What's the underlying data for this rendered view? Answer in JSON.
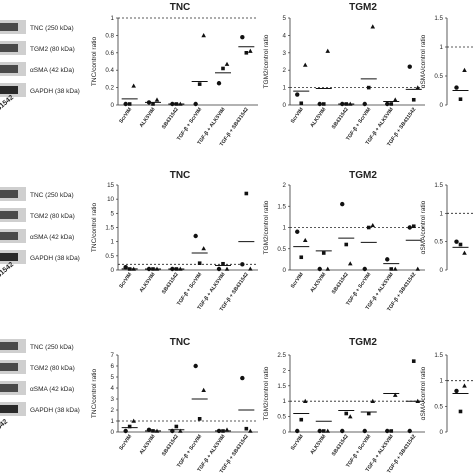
{
  "blots": [
    {
      "labels": [
        "TNC (250 kDa)",
        "TGM2 (80 kDa)",
        "αSMA (42 kDa)",
        "GAPDH (38 kDa)"
      ],
      "lane_label": "31542"
    },
    {
      "labels": [
        "TNC (250 kDa)",
        "TGM2 (80 kDa)",
        "αSMA (42 kDa)",
        "GAPDH (38 kDa)"
      ],
      "lane_label": "31542"
    },
    {
      "labels": [
        "TNC (250 kDa)",
        "TGM2 (80 kDa)",
        "αSMA (42 kDa)",
        "GAPDH (38 kDa)"
      ],
      "lane_label": "542"
    }
  ],
  "chart_data": [
    {
      "type": "scatter",
      "title": "TNC",
      "ylabel": "TNC/control ratio",
      "ylim": [
        0,
        1
      ],
      "yticks": [
        "0",
        "0.2",
        "0.4",
        "0.6",
        "0.8",
        "1"
      ],
      "reference_line": 1,
      "categories": [
        "ScrVIM",
        "ALK5VIM",
        "SB431542",
        "TGF-β + ScrVIM",
        "TGF-β + ALK5VIM",
        "TGF-β + SB431542"
      ],
      "points": [
        {
          "c": 0,
          "circle": 0.0,
          "square": 0.0,
          "triangle": 0.22,
          "mean": 0.07
        },
        {
          "c": 1,
          "circle": 0.03,
          "square": 0.0,
          "triangle": 0.06,
          "mean": 0.03
        },
        {
          "c": 2,
          "circle": 0.0,
          "square": 0.0,
          "triangle": 0.0,
          "mean": 0.0
        },
        {
          "c": 3,
          "circle": 0.0,
          "square": 0.24,
          "triangle": 0.8,
          "mean": 0.27
        },
        {
          "c": 4,
          "circle": 0.25,
          "square": 0.42,
          "triangle": 0.47,
          "mean": 0.37
        },
        {
          "c": 5,
          "circle": 0.78,
          "square": 0.6,
          "triangle": 0.62,
          "mean": 0.67
        }
      ]
    },
    {
      "type": "scatter",
      "title": "TGM2",
      "ylabel": "TGM2/control ratio",
      "ylim": [
        0,
        5
      ],
      "yticks": [
        "0",
        "1",
        "2",
        "3",
        "4",
        "5"
      ],
      "reference_line": 1,
      "categories": [
        "ScrVIM",
        "ALK5VIM",
        "SB431542",
        "TGF-β + ScrVIM",
        "TGF-β + ALK5VIM",
        "TGF-β + SB431542"
      ],
      "points": [
        {
          "c": 0,
          "circle": 0.6,
          "square": 0.1,
          "triangle": 2.3,
          "mean": 0.8
        },
        {
          "c": 1,
          "circle": 0.0,
          "square": 0.0,
          "triangle": 3.1,
          "mean": 0.95
        },
        {
          "c": 2,
          "circle": 0.0,
          "square": 0.0,
          "triangle": 0.0,
          "mean": 0.0
        },
        {
          "c": 3,
          "circle": 0.0,
          "square": 1.0,
          "triangle": 4.5,
          "mean": 1.5
        },
        {
          "c": 4,
          "circle": 0.0,
          "square": 0.0,
          "triangle": 0.3,
          "mean": 0.2
        },
        {
          "c": 5,
          "circle": 2.2,
          "square": 0.3,
          "triangle": 1.0,
          "mean": 0.9
        }
      ]
    },
    {
      "type": "scatter",
      "title": "",
      "ylabel": "αSMA/control ratio",
      "ylim": [
        0,
        1.5
      ],
      "yticks": [
        "0",
        "0.5",
        "1",
        "1.5"
      ],
      "reference_line": 1,
      "categories": [],
      "points": [
        {
          "c": 0,
          "circle": 0.3,
          "square": 0.1,
          "triangle": 0.6,
          "mean": 0.25
        }
      ]
    },
    {
      "type": "scatter",
      "title": "TNC",
      "ylabel": "TNC/control ratio",
      "ylim": [
        0,
        15
      ],
      "yticks": [
        "0",
        "0.5",
        "1",
        "1.5",
        "5",
        "10",
        "15"
      ],
      "reference_line": 1,
      "axis_break": true,
      "categories": [
        "ScrVIM",
        "ALK5VIM",
        "SB431542",
        "TGF-β + ScrVIM",
        "TGF-β + ALK5VIM",
        "TGF-β + SB431542"
      ],
      "points": [
        {
          "c": 0,
          "circle": 0.5,
          "square": 0.0,
          "triangle": 0.1,
          "mean": 0.2
        },
        {
          "c": 1,
          "circle": 0.0,
          "square": 0.0,
          "triangle": 0.0,
          "mean": 0.0
        },
        {
          "c": 2,
          "circle": 0.0,
          "square": 0.0,
          "triangle": 0.0,
          "mean": 0.0
        },
        {
          "c": 3,
          "circle": 6.0,
          "square": 1.2,
          "triangle": 3.8,
          "mean": 3.0
        },
        {
          "c": 4,
          "circle": 0.0,
          "square": 1.1,
          "triangle": 0.0,
          "mean": 0.8
        },
        {
          "c": 5,
          "circle": 1.0,
          "square": 13.5,
          "triangle": 0.2,
          "mean": 5.0
        }
      ]
    },
    {
      "type": "scatter",
      "title": "TGM2",
      "ylabel": "TGM2/control ratio",
      "ylim": [
        0,
        2
      ],
      "yticks": [
        "0",
        "0.5",
        "1",
        "1.5",
        "2"
      ],
      "reference_line": 1,
      "categories": [
        "ScrVIM",
        "ALK5VIM",
        "SB431542",
        "TGF-β + ScrVIM",
        "TGF-β + ALK5VIM",
        "TGF-β + SB431542"
      ],
      "points": [
        {
          "c": 0,
          "circle": 0.9,
          "square": 0.3,
          "triangle": 0.7,
          "mean": 0.55
        },
        {
          "c": 1,
          "circle": 0.0,
          "square": 0.4,
          "triangle": 0.0,
          "mean": 0.45
        },
        {
          "c": 2,
          "circle": 1.55,
          "square": 0.6,
          "triangle": 0.15,
          "mean": 0.75
        },
        {
          "c": 3,
          "circle": 0.0,
          "square": 1.0,
          "triangle": 1.05,
          "mean": 0.65
        },
        {
          "c": 4,
          "circle": 0.25,
          "square": 0.0,
          "triangle": 0.0,
          "mean": 0.15
        },
        {
          "c": 5,
          "circle": 1.0,
          "square": 1.03,
          "triangle": 0.0,
          "mean": 0.7
        }
      ]
    },
    {
      "type": "scatter",
      "title": "",
      "ylabel": "αSMA/control ratio",
      "ylim": [
        0,
        1.5
      ],
      "yticks": [
        "0",
        "0.5",
        "1",
        "1.5"
      ],
      "reference_line": 1,
      "categories": [],
      "points": [
        {
          "c": 0,
          "circle": 0.5,
          "square": 0.45,
          "triangle": 0.3,
          "mean": 0.4
        }
      ]
    },
    {
      "type": "scatter",
      "title": "TNC",
      "ylabel": "TNC/control ratio",
      "ylim": [
        0,
        7
      ],
      "yticks": [
        "0",
        "1",
        "2",
        "3",
        "4",
        "5",
        "6",
        "7"
      ],
      "reference_line": 1,
      "categories": [
        "ScrVIM",
        "ALK5VIM",
        "SB431542",
        "TGF-β + ScrVIM",
        "TGF-β + ALK5VIM",
        "TGF-β + SB431542"
      ],
      "points": [
        {
          "c": 0,
          "circle": 0.0,
          "square": 0.5,
          "triangle": 1.0,
          "mean": 0.4
        },
        {
          "c": 1,
          "circle": 0.2,
          "square": 0.1,
          "triangle": 0.05,
          "mean": 0.1
        },
        {
          "c": 2,
          "circle": 0.0,
          "square": 0.5,
          "triangle": 0.0,
          "mean": 0.2
        },
        {
          "c": 3,
          "circle": 6.0,
          "square": 1.2,
          "triangle": 3.8,
          "mean": 3.0
        },
        {
          "c": 4,
          "circle": 0.1,
          "square": 0.0,
          "triangle": 0.2,
          "mean": 0.1
        },
        {
          "c": 5,
          "circle": 4.9,
          "square": 0.3,
          "triangle": 0.0,
          "mean": 2.0
        }
      ]
    },
    {
      "type": "scatter",
      "title": "TGM2",
      "ylabel": "TGM2/control ratio",
      "ylim": [
        0,
        2.5
      ],
      "yticks": [
        "0",
        "0.5",
        "1",
        "1.5",
        "2",
        "2.5"
      ],
      "reference_line": 1,
      "categories": [
        "ScrVIM",
        "ALK5VIM",
        "SB431542",
        "TGF-β + ScrVIM",
        "TGF-β + ALK5VIM",
        "TGF-β + SB431542"
      ],
      "points": [
        {
          "c": 0,
          "circle": 0.0,
          "square": 0.4,
          "triangle": 1.0,
          "mean": 0.6
        },
        {
          "c": 1,
          "circle": 0.0,
          "square": 0.0,
          "triangle": 0.0,
          "mean": 0.35
        },
        {
          "c": 2,
          "circle": 0.0,
          "square": 0.6,
          "triangle": 0.5,
          "mean": 0.7
        },
        {
          "c": 3,
          "circle": 0.0,
          "square": 0.6,
          "triangle": 1.0,
          "mean": 0.65
        },
        {
          "c": 4,
          "circle": 0.0,
          "square": 0.0,
          "triangle": 1.2,
          "mean": 1.25
        },
        {
          "c": 5,
          "circle": 0.0,
          "square": 2.3,
          "triangle": 1.0,
          "mean": 1.0
        }
      ]
    },
    {
      "type": "scatter",
      "title": "",
      "ylabel": "αSMA/control ratio",
      "ylim": [
        0,
        1.5
      ],
      "yticks": [
        "0",
        "0.5",
        "1",
        "1.5"
      ],
      "reference_line": 1,
      "categories": [],
      "points": [
        {
          "c": 0,
          "circle": 0.8,
          "square": 0.4,
          "triangle": 0.9,
          "mean": 0.75
        }
      ]
    }
  ]
}
